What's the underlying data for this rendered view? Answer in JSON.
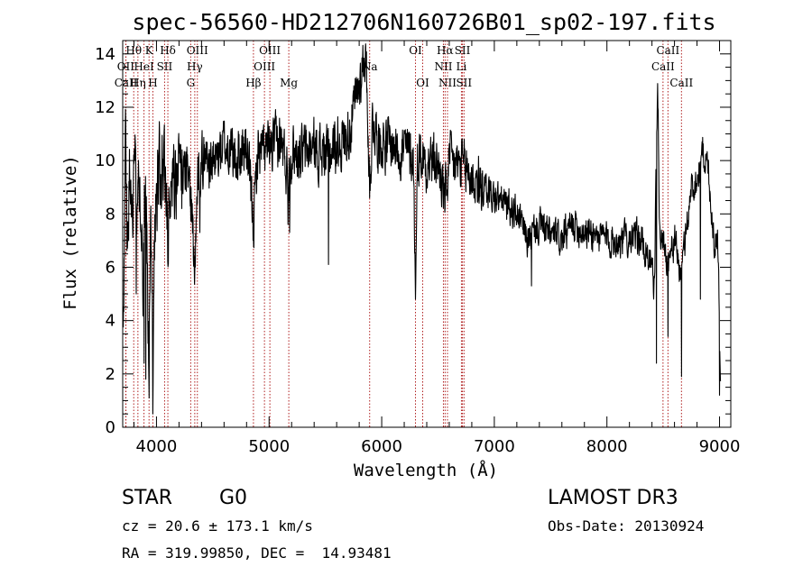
{
  "chart_data": {
    "type": "line",
    "title": "spec-56560-HD212706N160726B01_sp02-197.fits",
    "xlabel": "Wavelength (Å)",
    "ylabel": "Flux (relative)",
    "xlim": [
      3700,
      9100
    ],
    "ylim": [
      0,
      14.5
    ],
    "xticks": [
      4000,
      5000,
      6000,
      7000,
      8000,
      9000
    ],
    "yticks": [
      0,
      2,
      4,
      6,
      8,
      10,
      12,
      14
    ],
    "series": [
      {
        "name": "flux",
        "color": "#000000",
        "anchors": [
          [
            3705,
            3.0
          ],
          [
            3725,
            10.2
          ],
          [
            3740,
            6.8
          ],
          [
            3760,
            10.0
          ],
          [
            3780,
            7.4
          ],
          [
            3800,
            10.2
          ],
          [
            3830,
            8.0
          ],
          [
            3850,
            9.6
          ],
          [
            3880,
            5.5
          ],
          [
            3910,
            9.3
          ],
          [
            3934,
            2.0
          ],
          [
            3950,
            8.5
          ],
          [
            3968,
            1.5
          ],
          [
            3990,
            8.8
          ],
          [
            4030,
            9.8
          ],
          [
            4080,
            9.4
          ],
          [
            4101,
            6.5
          ],
          [
            4130,
            9.8
          ],
          [
            4200,
            9.6
          ],
          [
            4300,
            9.2
          ],
          [
            4340,
            5.8
          ],
          [
            4370,
            9.8
          ],
          [
            4450,
            10.2
          ],
          [
            4500,
            9.8
          ],
          [
            4600,
            10.6
          ],
          [
            4700,
            10.1
          ],
          [
            4800,
            10.5
          ],
          [
            4861,
            7.6
          ],
          [
            4900,
            10.4
          ],
          [
            5000,
            10.3
          ],
          [
            5100,
            10.8
          ],
          [
            5170,
            9.5
          ],
          [
            5200,
            10.4
          ],
          [
            5300,
            10.3
          ],
          [
            5400,
            10.5
          ],
          [
            5500,
            10.2
          ],
          [
            5600,
            10.6
          ],
          [
            5700,
            11.0
          ],
          [
            5780,
            12.3
          ],
          [
            5830,
            13.6
          ],
          [
            5850,
            14.1
          ],
          [
            5870,
            12.8
          ],
          [
            5893,
            9.0
          ],
          [
            5920,
            11.6
          ],
          [
            5960,
            10.9
          ],
          [
            6000,
            10.7
          ],
          [
            6100,
            10.6
          ],
          [
            6200,
            10.4
          ],
          [
            6280,
            10.2
          ],
          [
            6300,
            5.5
          ],
          [
            6320,
            10.3
          ],
          [
            6400,
            10.0
          ],
          [
            6500,
            9.9
          ],
          [
            6563,
            8.6
          ],
          [
            6600,
            9.9
          ],
          [
            6700,
            9.8
          ],
          [
            6800,
            9.4
          ],
          [
            6900,
            9.0
          ],
          [
            7000,
            8.6
          ],
          [
            7100,
            8.4
          ],
          [
            7200,
            8.0
          ],
          [
            7300,
            7.0
          ],
          [
            7400,
            7.6
          ],
          [
            7500,
            7.2
          ],
          [
            7600,
            7.0
          ],
          [
            7700,
            7.6
          ],
          [
            7800,
            7.4
          ],
          [
            7900,
            7.2
          ],
          [
            8000,
            7.1
          ],
          [
            8100,
            7.0
          ],
          [
            8200,
            7.2
          ],
          [
            8300,
            7.0
          ],
          [
            8380,
            6.4
          ],
          [
            8420,
            5.2
          ],
          [
            8450,
            12.8
          ],
          [
            8470,
            7.2
          ],
          [
            8500,
            6.9
          ],
          [
            8542,
            6.2
          ],
          [
            8600,
            7.0
          ],
          [
            8662,
            5.6
          ],
          [
            8700,
            7.3
          ],
          [
            8750,
            9.0
          ],
          [
            8800,
            9.2
          ],
          [
            8850,
            10.4
          ],
          [
            8900,
            9.7
          ],
          [
            8950,
            7.0
          ],
          [
            8990,
            6.8
          ],
          [
            9010,
            1.5
          ]
        ],
        "absorption_dips": [
          [
            3820,
            5.0
          ],
          [
            3889,
            2.4
          ],
          [
            3905,
            1.8
          ],
          [
            3934,
            1.1
          ],
          [
            3968,
            0.5
          ],
          [
            4101,
            6.2
          ],
          [
            4226,
            8.2
          ],
          [
            4340,
            5.8
          ],
          [
            4384,
            7.3
          ],
          [
            4861,
            7.5
          ],
          [
            5167,
            7.6
          ],
          [
            5183,
            7.3
          ],
          [
            5528,
            6.1
          ],
          [
            5893,
            8.6
          ],
          [
            6300,
            4.8
          ],
          [
            6563,
            8.2
          ],
          [
            6866,
            8.4
          ],
          [
            7330,
            5.3
          ],
          [
            8440,
            2.4
          ],
          [
            8542,
            3.4
          ],
          [
            8662,
            1.9
          ],
          [
            8830,
            4.8
          ],
          [
            9000,
            1.2
          ]
        ]
      }
    ],
    "spectral_lines": [
      {
        "label": "Hθ",
        "x": 3798,
        "row": 0,
        "color": "#b02020"
      },
      {
        "label": "OII",
        "x": 3727,
        "row": 1,
        "color": "#b02020"
      },
      {
        "label": "CaII",
        "x": 3729,
        "row": 2,
        "color": "#b02020"
      },
      {
        "label": "Hη",
        "x": 3835,
        "row": 2,
        "color": "#b02020"
      },
      {
        "label": "HeI",
        "x": 3889,
        "row": 1,
        "color": "#b02020"
      },
      {
        "label": "K",
        "x": 3934,
        "row": 0,
        "color": "#b02020"
      },
      {
        "label": "H",
        "x": 3968,
        "row": 2,
        "color": "#b02020"
      },
      {
        "label": "SII",
        "x": 4072,
        "row": 1,
        "color": "#b02020"
      },
      {
        "label": "Hδ",
        "x": 4101,
        "row": 0,
        "color": "#b02020"
      },
      {
        "label": "OIII",
        "x": 4363,
        "row": 0,
        "color": "#b02020"
      },
      {
        "label": "Hγ",
        "x": 4340,
        "row": 1,
        "color": "#b02020"
      },
      {
        "label": "G",
        "x": 4304,
        "row": 2,
        "color": "#b02020"
      },
      {
        "label": "Hβ",
        "x": 4861,
        "row": 2,
        "color": "#b02020"
      },
      {
        "label": "OIII",
        "x": 5007,
        "row": 0,
        "color": "#b02020"
      },
      {
        "label": "OIII",
        "x": 4959,
        "row": 1,
        "color": "#b02020"
      },
      {
        "label": "Mg",
        "x": 5175,
        "row": 2,
        "color": "#b02020"
      },
      {
        "label": "Na",
        "x": 5893,
        "row": 1,
        "color": "#b02020"
      },
      {
        "label": "OI",
        "x": 6300,
        "row": 0,
        "color": "#b02020"
      },
      {
        "label": "OI",
        "x": 6364,
        "row": 2,
        "color": "#b02020"
      },
      {
        "label": "Hα",
        "x": 6563,
        "row": 0,
        "color": "#b02020"
      },
      {
        "label": "NII",
        "x": 6548,
        "row": 1,
        "color": "#b02020"
      },
      {
        "label": "NII",
        "x": 6584,
        "row": 2,
        "color": "#b02020"
      },
      {
        "label": "SII",
        "x": 6717,
        "row": 0,
        "color": "#b02020"
      },
      {
        "label": "Li",
        "x": 6708,
        "row": 1,
        "color": "#b02020"
      },
      {
        "label": "SII",
        "x": 6731,
        "row": 2,
        "color": "#b02020"
      },
      {
        "label": "CaII",
        "x": 8542,
        "row": 0,
        "color": "#b02020"
      },
      {
        "label": "CaII",
        "x": 8498,
        "row": 1,
        "color": "#b02020"
      },
      {
        "label": "CaII",
        "x": 8662,
        "row": 2,
        "color": "#b02020"
      }
    ]
  },
  "info": {
    "object_class": "STAR",
    "subclass": "G0",
    "survey": "LAMOST DR3",
    "redshift_text": "cz = 20.6 ± 173.1 km/s",
    "obs_date_text": "Obs-Date: 20130924",
    "coords_text": "RA = 319.99850, DEC =  14.93481"
  }
}
